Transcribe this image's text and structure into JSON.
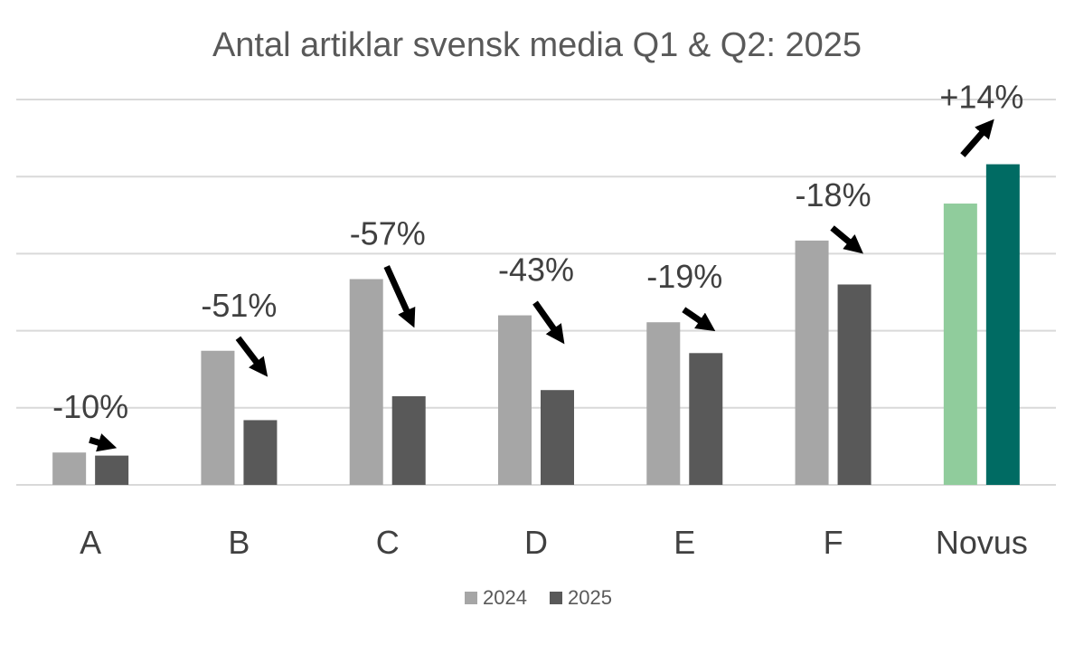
{
  "chart_data": {
    "type": "bar",
    "title": "Antal artiklar svensk media Q1 & Q2: 2025",
    "categories": [
      "A",
      "B",
      "C",
      "D",
      "E",
      "F",
      "Novus"
    ],
    "series": [
      {
        "name": "2024",
        "values": [
          0.42,
          1.74,
          2.67,
          2.2,
          2.11,
          3.17,
          3.65
        ]
      },
      {
        "name": "2025",
        "values": [
          0.38,
          0.84,
          1.15,
          1.23,
          1.71,
          2.6,
          4.16
        ]
      }
    ],
    "changes": [
      "-10%",
      "-51%",
      "-57%",
      "-43%",
      "-19%",
      "-18%",
      "+14%"
    ],
    "ylim": [
      0,
      5
    ],
    "grid": true,
    "legend": "bottom",
    "colors": {
      "series_2024": "#a6a6a6",
      "series_2025": "#595959",
      "highlight_2024": "#90cc9c",
      "highlight_2025": "#006b63",
      "gridline": "#d9d9d9",
      "arrow": "#000000"
    },
    "highlight_category": "Novus"
  }
}
